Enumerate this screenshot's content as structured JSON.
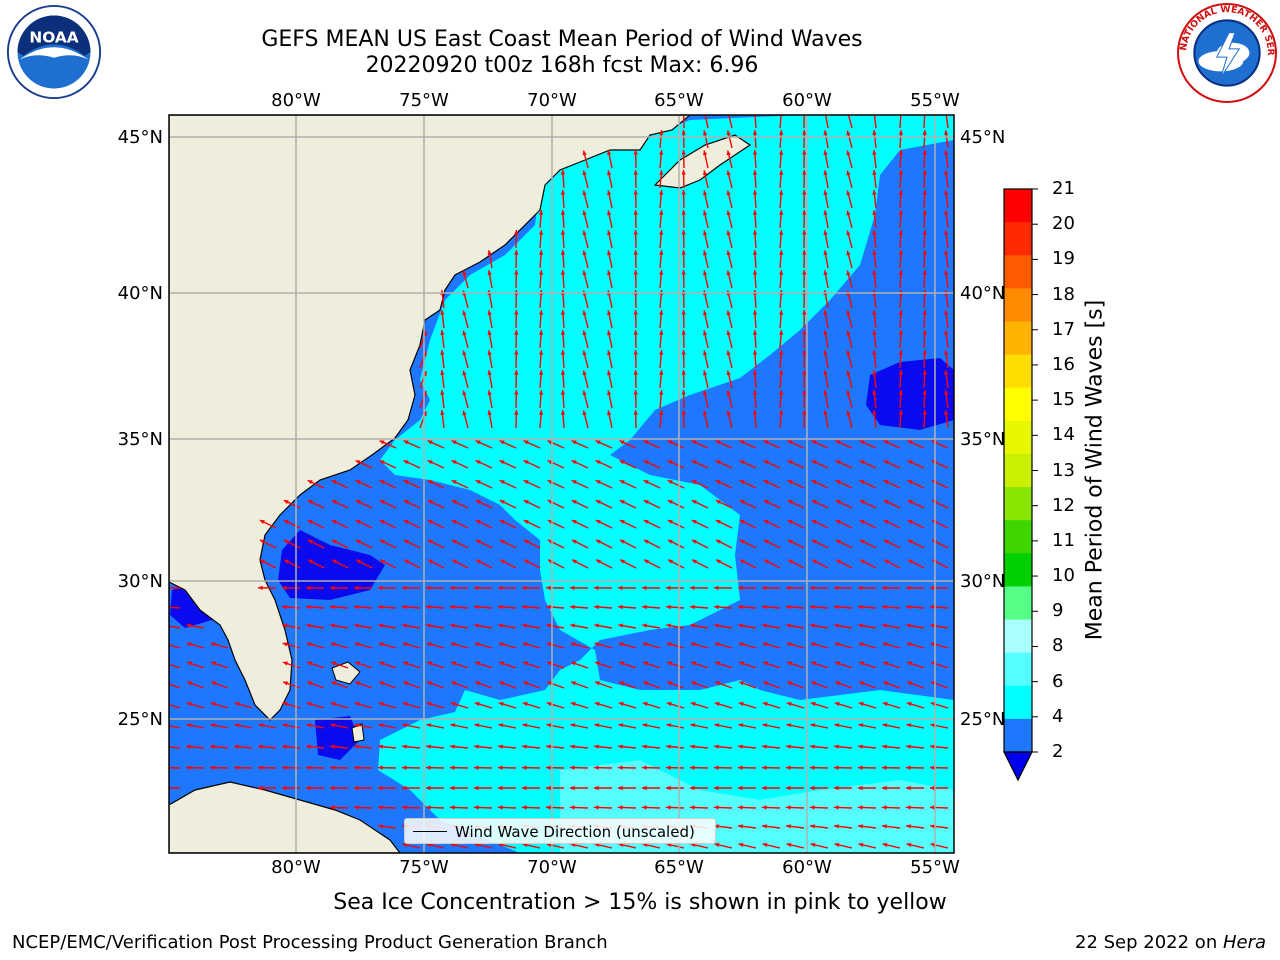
{
  "title": {
    "line1": "GEFS MEAN US East Coast Mean Period of Wind Waves",
    "line2": "20220920 t00z 168h fcst   Max: 6.96"
  },
  "logos": {
    "left": {
      "name": "noaa-logo",
      "text": "NOAA"
    },
    "right": {
      "name": "nws-logo",
      "text": "NATIONAL WEATHER SERVICE"
    }
  },
  "axes": {
    "lon_labels": [
      "80°W",
      "75°W",
      "70°W",
      "65°W",
      "60°W",
      "55°W"
    ],
    "lat_labels": [
      "45°N",
      "40°N",
      "35°N",
      "30°N",
      "25°N"
    ]
  },
  "legend": {
    "label": "Wind Wave Direction (unscaled)"
  },
  "colorbar": {
    "title": "Mean Period of Wind Waves [s]",
    "ticks": [
      "21",
      "20",
      "19",
      "18",
      "17",
      "16",
      "15",
      "14",
      "13",
      "12",
      "11",
      "10",
      "9",
      "8",
      "6",
      "4",
      "2"
    ],
    "colors": [
      "#ff0000",
      "#ff2a00",
      "#ff5a00",
      "#ff8a00",
      "#ffb300",
      "#ffdd00",
      "#ffff00",
      "#e6f700",
      "#c8f000",
      "#8ae600",
      "#3fd600",
      "#00d000",
      "#55ff88",
      "#aaffff",
      "#55ffff",
      "#00ffff",
      "#1e78ff",
      "#0000ee"
    ]
  },
  "map_colors": {
    "land": "#efeedc",
    "dark_blue": "#0a0aee",
    "mid_blue": "#1e78ff",
    "cyan": "#00ffff",
    "light_cyan": "#55ffff",
    "arrow": "#ff0000"
  },
  "caption": "Sea Ice Concentration > 15% is shown in pink to yellow",
  "footer": {
    "left": "NCEP/EMC/Verification Post Processing Product Generation Branch",
    "right_prefix": "22 Sep 2022 on ",
    "right_host": "Hera"
  }
}
